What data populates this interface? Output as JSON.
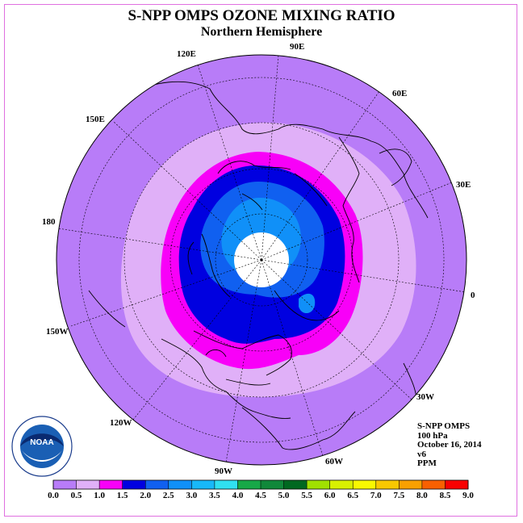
{
  "title": "S-NPP OMPS OZONE MIXING RATIO",
  "subtitle": "Northern Hemisphere",
  "longitude_labels": {
    "e120": "120E",
    "e90": "90E",
    "e60": "60E",
    "e30": "30E",
    "zero": "0",
    "w30": "30W",
    "w60": "60W",
    "w90": "90W",
    "w120": "120W",
    "w150": "150W",
    "d180": "180",
    "e150": "150E"
  },
  "info": {
    "instrument": "S-NPP OMPS",
    "level": "100 hPa",
    "date": "October 16, 2014",
    "version": "v6",
    "units": "PPM"
  },
  "logo": {
    "text": "NOAA",
    "ring_text": "NATIONAL OCEANIC AND ATMOSPHERIC ADMINISTRATION · U.S. DEPARTMENT OF COMMERCE"
  },
  "colorbar": {
    "ticks": [
      "0.0",
      "0.5",
      "1.0",
      "1.5",
      "2.0",
      "2.5",
      "3.0",
      "3.5",
      "4.0",
      "4.5",
      "5.0",
      "5.5",
      "6.0",
      "6.5",
      "7.0",
      "7.5",
      "8.0",
      "8.5",
      "9.0"
    ],
    "colors": [
      "#b87cf8",
      "#e0b0f8",
      "#f800f8",
      "#0000e0",
      "#1060f0",
      "#1090f8",
      "#18b8f8",
      "#30e0f0",
      "#18a848",
      "#10883a",
      "#006820",
      "#a0e000",
      "#d8f000",
      "#f8f800",
      "#f8c800",
      "#f8a000",
      "#f86000",
      "#f80000",
      "#886040"
    ]
  },
  "map_colors": {
    "ocean_bg": "#b87cf8",
    "band_0_5": "#e0b0f8",
    "band_1_0": "#f800f8",
    "band_1_5": "#0000e0",
    "band_2_0": "#1060f0",
    "band_2_5": "#1090f8",
    "pole_nodata": "#ffffff"
  }
}
